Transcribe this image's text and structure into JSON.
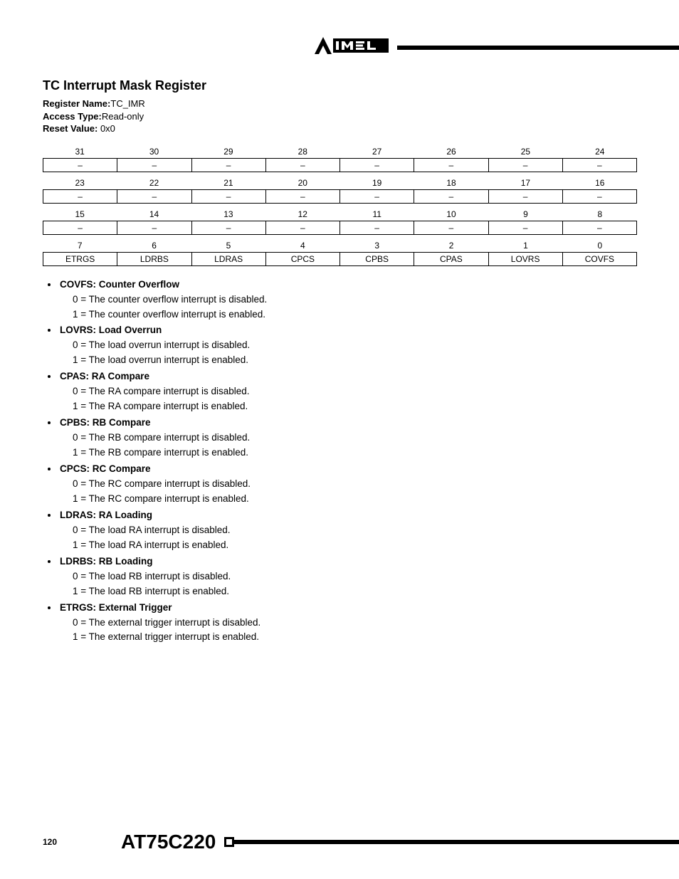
{
  "header": {
    "logo_text": "ATMEL"
  },
  "register": {
    "title": "TC Interrupt Mask Register",
    "name_label": "Register Name:",
    "name_value": "TC_IMR",
    "access_label": "Access Type:",
    "access_value": "Read-only",
    "reset_label": "Reset Value:",
    "reset_value": " 0x0"
  },
  "bit_rows": [
    {
      "nums": [
        "31",
        "30",
        "29",
        "28",
        "27",
        "26",
        "25",
        "24"
      ],
      "names": [
        "–",
        "–",
        "–",
        "–",
        "–",
        "–",
        "–",
        "–"
      ]
    },
    {
      "nums": [
        "23",
        "22",
        "21",
        "20",
        "19",
        "18",
        "17",
        "16"
      ],
      "names": [
        "–",
        "–",
        "–",
        "–",
        "–",
        "–",
        "–",
        "–"
      ]
    },
    {
      "nums": [
        "15",
        "14",
        "13",
        "12",
        "11",
        "10",
        "9",
        "8"
      ],
      "names": [
        "–",
        "–",
        "–",
        "–",
        "–",
        "–",
        "–",
        "–"
      ]
    },
    {
      "nums": [
        "7",
        "6",
        "5",
        "4",
        "3",
        "2",
        "1",
        "0"
      ],
      "names": [
        "ETRGS",
        "LDRBS",
        "LDRAS",
        "CPCS",
        "CPBS",
        "CPAS",
        "LOVRS",
        "COVFS"
      ]
    }
  ],
  "fields": [
    {
      "title": "COVFS: Counter Overflow",
      "lines": [
        "0 = The counter overflow interrupt is disabled.",
        "1 = The counter overflow interrupt is enabled."
      ]
    },
    {
      "title": "LOVRS: Load Overrun",
      "lines": [
        "0 = The load overrun interrupt is disabled.",
        "1 = The load overrun interrupt is enabled."
      ]
    },
    {
      "title": "CPAS: RA Compare",
      "lines": [
        "0 = The RA compare interrupt is disabled.",
        "1 = The RA compare interrupt is enabled."
      ]
    },
    {
      "title": "CPBS: RB Compare",
      "lines": [
        "0 = The RB compare interrupt is disabled.",
        "1 = The RB compare interrupt is enabled."
      ]
    },
    {
      "title": "CPCS: RC Compare",
      "lines": [
        "0 = The RC compare interrupt is disabled.",
        "1 = The RC compare interrupt is enabled."
      ]
    },
    {
      "title": "LDRAS: RA Loading",
      "lines": [
        "0 = The load RA interrupt is disabled.",
        "1 = The load RA interrupt is enabled."
      ]
    },
    {
      "title": "LDRBS: RB Loading",
      "lines": [
        "0 = The load RB interrupt is disabled.",
        "1 = The load RB interrupt is enabled."
      ]
    },
    {
      "title": "ETRGS: External Trigger",
      "lines": [
        "0 = The external trigger interrupt is disabled.",
        "1 = The external trigger interrupt is enabled."
      ]
    }
  ],
  "footer": {
    "page": "120",
    "chip": "AT75C220"
  }
}
